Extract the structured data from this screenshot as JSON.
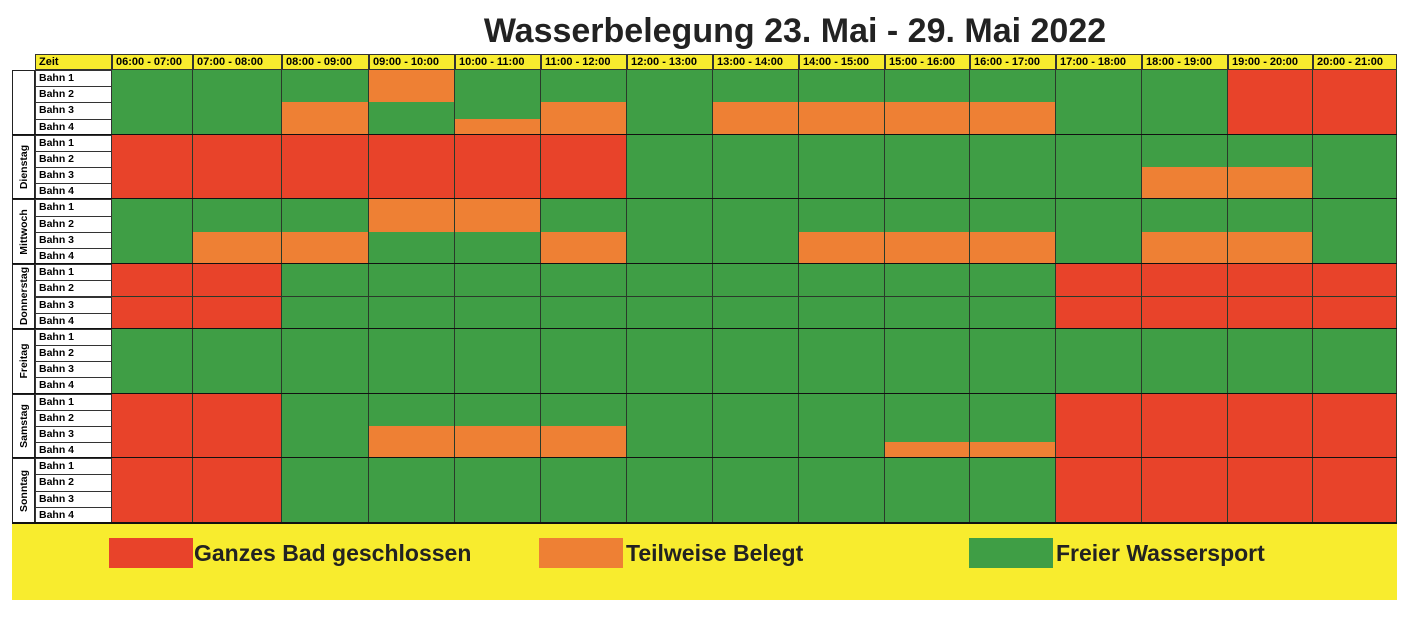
{
  "title": "Wasserbelegung 23. Mai - 29. Mai 2022",
  "table": {
    "corner": "Zeit",
    "columns": [
      "06:00 - 07:00",
      "07:00 - 08:00",
      "08:00 - 09:00",
      "09:00 - 10:00",
      "10:00 - 11:00",
      "11:00 - 12:00",
      "12:00 - 13:00",
      "13:00 - 14:00",
      "14:00 - 15:00",
      "15:00 - 16:00",
      "16:00 - 17:00",
      "17:00 - 18:00",
      "18:00 - 19:00",
      "19:00 - 20:00",
      "20:00 - 21:00"
    ],
    "days": [
      {
        "label": null,
        "lanes": [
          {
            "label": "Bahn 1",
            "cells": [
              2,
              2,
              2,
              1,
              2,
              2,
              2,
              2,
              2,
              2,
              2,
              2,
              2,
              0,
              0
            ]
          },
          {
            "label": "Bahn 2",
            "cells": [
              2,
              2,
              2,
              1,
              2,
              2,
              2,
              2,
              2,
              2,
              2,
              2,
              2,
              0,
              0
            ]
          },
          {
            "label": "Bahn 3",
            "cells": [
              2,
              2,
              1,
              2,
              2,
              1,
              2,
              1,
              1,
              1,
              1,
              2,
              2,
              0,
              0
            ]
          },
          {
            "label": "Bahn 4",
            "cells": [
              2,
              2,
              1,
              2,
              1,
              1,
              2,
              1,
              1,
              1,
              1,
              2,
              2,
              0,
              0
            ]
          }
        ]
      },
      {
        "label": "Dienstag",
        "lanes": [
          {
            "label": "Bahn 1",
            "cells": [
              0,
              0,
              0,
              0,
              0,
              0,
              2,
              2,
              2,
              2,
              2,
              2,
              2,
              2,
              2
            ]
          },
          {
            "label": "Bahn 2",
            "cells": [
              0,
              0,
              0,
              0,
              0,
              0,
              2,
              2,
              2,
              2,
              2,
              2,
              2,
              2,
              2
            ]
          },
          {
            "label": "Bahn 3",
            "cells": [
              0,
              0,
              0,
              0,
              0,
              0,
              2,
              2,
              2,
              2,
              2,
              2,
              1,
              1,
              2
            ]
          },
          {
            "label": "Bahn 4",
            "cells": [
              0,
              0,
              0,
              0,
              0,
              0,
              2,
              2,
              2,
              2,
              2,
              2,
              1,
              1,
              2
            ]
          }
        ]
      },
      {
        "label": "Mittwoch",
        "lanes": [
          {
            "label": "Bahn 1",
            "cells": [
              2,
              2,
              2,
              1,
              1,
              2,
              2,
              2,
              2,
              2,
              2,
              2,
              2,
              2,
              2
            ]
          },
          {
            "label": "Bahn 2",
            "cells": [
              2,
              2,
              2,
              1,
              1,
              2,
              2,
              2,
              2,
              2,
              2,
              2,
              2,
              2,
              2
            ]
          },
          {
            "label": "Bahn 3",
            "cells": [
              2,
              1,
              1,
              2,
              2,
              1,
              2,
              2,
              1,
              1,
              1,
              2,
              1,
              1,
              2
            ]
          },
          {
            "label": "Bahn 4",
            "cells": [
              2,
              1,
              1,
              2,
              2,
              1,
              2,
              2,
              1,
              1,
              1,
              2,
              1,
              1,
              2
            ]
          }
        ]
      },
      {
        "label": "Donnerstag",
        "lanes": [
          {
            "label": "Bahn 1",
            "cells": [
              0,
              0,
              2,
              2,
              2,
              2,
              2,
              2,
              2,
              2,
              2,
              0,
              0,
              0,
              0
            ]
          },
          {
            "label": "Bahn 2",
            "cells": [
              0,
              0,
              2,
              2,
              2,
              2,
              2,
              2,
              2,
              2,
              2,
              0,
              0,
              0,
              0
            ]
          },
          {
            "label": "Bahn 3",
            "cells": [
              0,
              0,
              2,
              2,
              2,
              2,
              2,
              2,
              2,
              2,
              2,
              0,
              0,
              0,
              0
            ]
          },
          {
            "label": "Bahn 4",
            "cells": [
              0,
              0,
              2,
              2,
              2,
              2,
              2,
              2,
              2,
              2,
              2,
              0,
              0,
              0,
              0
            ]
          }
        ]
      },
      {
        "label": "Freitag",
        "lanes": [
          {
            "label": "Bahn 1",
            "cells": [
              2,
              2,
              2,
              2,
              2,
              2,
              2,
              2,
              2,
              2,
              2,
              2,
              2,
              2,
              2
            ]
          },
          {
            "label": "Bahn 2",
            "cells": [
              2,
              2,
              2,
              2,
              2,
              2,
              2,
              2,
              2,
              2,
              2,
              2,
              2,
              2,
              2
            ]
          },
          {
            "label": "Bahn 3",
            "cells": [
              2,
              2,
              2,
              2,
              2,
              2,
              2,
              2,
              2,
              2,
              2,
              2,
              2,
              2,
              2
            ]
          },
          {
            "label": "Bahn 4",
            "cells": [
              2,
              2,
              2,
              2,
              2,
              2,
              2,
              2,
              2,
              2,
              2,
              2,
              2,
              2,
              2
            ]
          }
        ]
      },
      {
        "label": "Samstag",
        "lanes": [
          {
            "label": "Bahn 1",
            "cells": [
              0,
              0,
              2,
              2,
              2,
              2,
              2,
              2,
              2,
              2,
              2,
              0,
              0,
              0,
              0
            ]
          },
          {
            "label": "Bahn 2",
            "cells": [
              0,
              0,
              2,
              2,
              2,
              2,
              2,
              2,
              2,
              2,
              2,
              0,
              0,
              0,
              0
            ]
          },
          {
            "label": "Bahn 3",
            "cells": [
              0,
              0,
              2,
              1,
              1,
              1,
              2,
              2,
              2,
              2,
              2,
              0,
              0,
              0,
              0
            ]
          },
          {
            "label": "Bahn 4",
            "cells": [
              0,
              0,
              2,
              1,
              1,
              1,
              2,
              2,
              2,
              1,
              1,
              0,
              0,
              0,
              0
            ]
          }
        ]
      },
      {
        "label": "Sonntag",
        "lanes": [
          {
            "label": "Bahn 1",
            "cells": [
              0,
              0,
              2,
              2,
              2,
              2,
              2,
              2,
              2,
              2,
              2,
              0,
              0,
              0,
              0
            ]
          },
          {
            "label": "Bahn 2",
            "cells": [
              0,
              0,
              2,
              2,
              2,
              2,
              2,
              2,
              2,
              2,
              2,
              0,
              0,
              0,
              0
            ]
          },
          {
            "label": "Bahn 3",
            "cells": [
              0,
              0,
              2,
              2,
              2,
              2,
              2,
              2,
              2,
              2,
              2,
              0,
              0,
              0,
              0
            ]
          },
          {
            "label": "Bahn 4",
            "cells": [
              0,
              0,
              2,
              2,
              2,
              2,
              2,
              2,
              2,
              2,
              2,
              0,
              0,
              0,
              0
            ]
          }
        ]
      }
    ]
  },
  "legend": [
    {
      "label": "Ganzes Bad geschlossen",
      "color": "#e8432a"
    },
    {
      "label": "Teilweise Belegt",
      "color": "#ee8034"
    },
    {
      "label": "Freier Wassersport",
      "color": "#3f9e45"
    }
  ]
}
